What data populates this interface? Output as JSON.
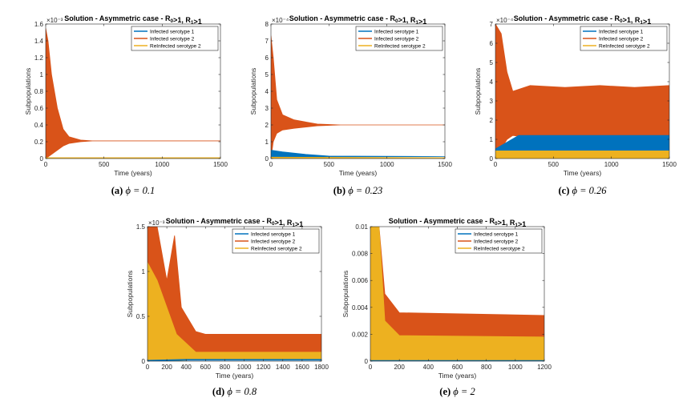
{
  "colors": {
    "infected1": "#0072BD",
    "infected2": "#D95319",
    "reinfected2": "#EDB120"
  },
  "chart_data": [
    {
      "id": "a",
      "type": "line",
      "title": "Solution - Asymmetric case - R0>1, R1>1",
      "xlabel": "Time (years)",
      "ylabel": "Subpopulations",
      "y_exponent": "×10⁻³",
      "caption_label": "(a)",
      "caption_value": "ϕ = 0.1",
      "xlim": [
        0,
        1500
      ],
      "ylim": [
        0,
        1.6
      ],
      "xticks": [
        0,
        500,
        1000,
        1500
      ],
      "xtick_labels": [
        "0",
        "500",
        "1000",
        "1500"
      ],
      "yticks": [
        0,
        0.2,
        0.4,
        0.6,
        0.8,
        1,
        1.2,
        1.4,
        1.6
      ],
      "ytick_labels": [
        "0",
        "0.2",
        "0.4",
        "0.6",
        "0.8",
        "1",
        "1.2",
        "1.4",
        "1.6"
      ],
      "legend": [
        "Infected serotype 1",
        "Infected serotype 2",
        "ReInfected serotype 2"
      ],
      "legend_position": "top-right",
      "series": [
        {
          "name": "Infected serotype 2",
          "key": "infected2",
          "envelope": [
            [
              0,
              0,
              1.55
            ],
            [
              20,
              0.02,
              1.4
            ],
            [
              50,
              0.05,
              1.0
            ],
            [
              100,
              0.1,
              0.6
            ],
            [
              150,
              0.15,
              0.35
            ],
            [
              200,
              0.18,
              0.26
            ],
            [
              300,
              0.2,
              0.22
            ],
            [
              400,
              0.21,
              0.21
            ],
            [
              1500,
              0.21,
              0.21
            ]
          ]
        },
        {
          "name": "Infected serotype 1",
          "key": "infected1",
          "envelope": [
            [
              0,
              0,
              0.005
            ],
            [
              1500,
              0,
              0.005
            ]
          ]
        },
        {
          "name": "ReInfected serotype 2",
          "key": "reinfected2",
          "envelope": [
            [
              0,
              0,
              0.01
            ],
            [
              1500,
              0,
              0.01
            ]
          ]
        }
      ]
    },
    {
      "id": "b",
      "type": "line",
      "title": "Solution - Asymmetric case - R0>1, R1>1",
      "xlabel": "Time (years)",
      "ylabel": "Subpopulations",
      "y_exponent": "×10⁻⁴",
      "caption_label": "(b)",
      "caption_value": "ϕ = 0.23",
      "xlim": [
        0,
        1500
      ],
      "ylim": [
        0,
        8
      ],
      "xticks": [
        0,
        500,
        1000,
        1500
      ],
      "xtick_labels": [
        "0",
        "500",
        "1000",
        "1500"
      ],
      "yticks": [
        0,
        1,
        2,
        3,
        4,
        5,
        6,
        7,
        8
      ],
      "ytick_labels": [
        "0",
        "1",
        "2",
        "3",
        "4",
        "5",
        "6",
        "7",
        "8"
      ],
      "legend": [
        "Infected serotype 1",
        "Infected serotype 2",
        "ReInfected serotype 2"
      ],
      "legend_position": "top-right",
      "series": [
        {
          "name": "Infected serotype 2",
          "key": "infected2",
          "envelope": [
            [
              0,
              0,
              7.3
            ],
            [
              20,
              1,
              6
            ],
            [
              50,
              1.5,
              3.5
            ],
            [
              100,
              1.7,
              2.6
            ],
            [
              200,
              1.8,
              2.3
            ],
            [
              400,
              1.95,
              2.05
            ],
            [
              600,
              2,
              2
            ],
            [
              1500,
              2,
              2
            ]
          ]
        },
        {
          "name": "Infected serotype 1",
          "key": "infected1",
          "envelope": [
            [
              0,
              0,
              0.5
            ],
            [
              100,
              0,
              0.4
            ],
            [
              300,
              0.05,
              0.25
            ],
            [
              500,
              0.1,
              0.15
            ],
            [
              1500,
              0.12,
              0.12
            ]
          ]
        },
        {
          "name": "ReInfected serotype 2",
          "key": "reinfected2",
          "envelope": [
            [
              0,
              0,
              0.08
            ],
            [
              1500,
              0.03,
              0.05
            ]
          ]
        }
      ]
    },
    {
      "id": "c",
      "type": "line",
      "title": "Solution - Asymmetric case - R0>1, R1>1",
      "xlabel": "Time (years)",
      "ylabel": "Subpopulations",
      "y_exponent": "×10⁻⁴",
      "caption_label": "(c)",
      "caption_value": "ϕ = 0.26",
      "xlim": [
        0,
        1500
      ],
      "ylim": [
        0,
        7
      ],
      "xticks": [
        0,
        500,
        1000,
        1500
      ],
      "xtick_labels": [
        "0",
        "500",
        "1000",
        "1500"
      ],
      "yticks": [
        0,
        1,
        2,
        3,
        4,
        5,
        6,
        7
      ],
      "ytick_labels": [
        "0",
        "1",
        "2",
        "3",
        "4",
        "5",
        "6",
        "7"
      ],
      "legend": [
        "Infected serotype 1",
        "Infected serotype 2",
        "ReInfected serotype 2"
      ],
      "legend_position": "top-right",
      "series": [
        {
          "name": "Infected serotype 2",
          "key": "infected2",
          "envelope": [
            [
              0,
              0,
              7
            ],
            [
              50,
              0.5,
              6.5
            ],
            [
              100,
              1,
              4.5
            ],
            [
              150,
              1.2,
              3.5
            ],
            [
              300,
              1.1,
              3.8
            ],
            [
              600,
              1.1,
              3.7
            ],
            [
              900,
              1.1,
              3.8
            ],
            [
              1200,
              1.1,
              3.7
            ],
            [
              1500,
              1.1,
              3.8
            ]
          ]
        },
        {
          "name": "Infected serotype 1",
          "key": "infected1",
          "envelope": [
            [
              0,
              0,
              0.5
            ],
            [
              200,
              0,
              1.2
            ],
            [
              1500,
              0,
              1.2
            ]
          ]
        },
        {
          "name": "ReInfected serotype 2",
          "key": "reinfected2",
          "envelope": [
            [
              0,
              0,
              0.4
            ],
            [
              1500,
              0,
              0.4
            ]
          ]
        }
      ]
    },
    {
      "id": "d",
      "type": "line",
      "title": "Solution - Asymmetric case - R0>1, R1>1",
      "xlabel": "Time (years)",
      "ylabel": "Subpopulations",
      "y_exponent": "×10⁻³",
      "caption_label": "(d)",
      "caption_value": "ϕ = 0.8",
      "xlim": [
        0,
        1800
      ],
      "ylim": [
        0,
        1.5
      ],
      "xticks": [
        0,
        200,
        400,
        600,
        800,
        1000,
        1200,
        1400,
        1600,
        1800
      ],
      "xtick_labels": [
        "0",
        "200",
        "400",
        "600",
        "800",
        "1000",
        "1200",
        "1400",
        "1600",
        "1800"
      ],
      "yticks": [
        0,
        0.5,
        1,
        1.5
      ],
      "ytick_labels": [
        "0",
        "0.5",
        "1",
        "1.5"
      ],
      "legend": [
        "Infected serotype 1",
        "Infected serotype 2",
        "ReInfected serotype 2"
      ],
      "legend_position": "top-right",
      "series": [
        {
          "name": "Infected serotype 2",
          "key": "infected2",
          "envelope": [
            [
              0,
              0,
              1.5
            ],
            [
              100,
              0.1,
              1.5
            ],
            [
              200,
              0.1,
              0.9
            ],
            [
              280,
              0.1,
              1.4
            ],
            [
              350,
              0.1,
              0.6
            ],
            [
              500,
              0.1,
              0.33
            ],
            [
              600,
              0.1,
              0.3
            ],
            [
              1800,
              0.1,
              0.3
            ]
          ]
        },
        {
          "name": "ReInfected serotype 2",
          "key": "reinfected2",
          "envelope": [
            [
              0,
              0,
              1.1
            ],
            [
              100,
              0,
              0.9
            ],
            [
              300,
              0,
              0.3
            ],
            [
              500,
              0.02,
              0.1
            ],
            [
              1800,
              0.02,
              0.1
            ]
          ]
        },
        {
          "name": "Infected serotype 1",
          "key": "infected1",
          "envelope": [
            [
              0,
              0,
              0.01
            ],
            [
              400,
              0.01,
              0.02
            ],
            [
              1800,
              0.01,
              0.02
            ]
          ]
        }
      ]
    },
    {
      "id": "e",
      "type": "line",
      "title": "Solution - Asymmetric case - R0>1, R1>1",
      "xlabel": "Time (years)",
      "ylabel": "Subpopulations",
      "y_exponent": "",
      "caption_label": "(e)",
      "caption_value": "ϕ = 2",
      "xlim": [
        0,
        1200
      ],
      "ylim": [
        0,
        0.01
      ],
      "xticks": [
        0,
        200,
        400,
        600,
        800,
        1000,
        1200
      ],
      "xtick_labels": [
        "0",
        "200",
        "400",
        "600",
        "800",
        "1000",
        "1200"
      ],
      "yticks": [
        0,
        0.002,
        0.004,
        0.006,
        0.008,
        0.01
      ],
      "ytick_labels": [
        "0",
        "0.002",
        "0.004",
        "0.006",
        "0.008",
        "0.01"
      ],
      "legend": [
        "Infected serotype 1",
        "Infected serotype 2",
        "ReInfected serotype 2"
      ],
      "legend_position": "top-right",
      "series": [
        {
          "name": "Infected serotype 2",
          "key": "infected2",
          "envelope": [
            [
              0,
              0,
              0.01
            ],
            [
              60,
              0,
              0.01
            ],
            [
              100,
              0.001,
              0.005
            ],
            [
              200,
              0.0015,
              0.0036
            ],
            [
              1200,
              0.0016,
              0.0034
            ]
          ]
        },
        {
          "name": "ReInfected serotype 2",
          "key": "reinfected2",
          "envelope": [
            [
              0,
              0,
              0.01
            ],
            [
              60,
              0,
              0.01
            ],
            [
              100,
              0,
              0.003
            ],
            [
              200,
              0,
              0.0019
            ],
            [
              1200,
              0,
              0.0018
            ]
          ]
        },
        {
          "name": "Infected serotype 1",
          "key": "infected1",
          "envelope": [
            [
              0,
              0,
              5e-05
            ],
            [
              1200,
              0,
              5e-05
            ]
          ]
        }
      ]
    }
  ]
}
